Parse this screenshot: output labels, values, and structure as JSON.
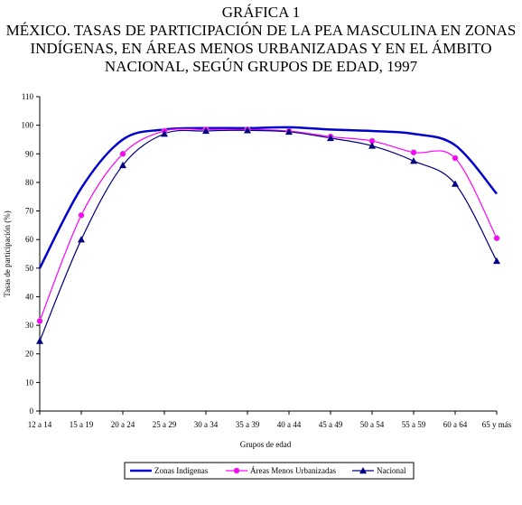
{
  "chart_data": {
    "type": "line",
    "title_lines": [
      "GRÁFICA 1",
      "MÉXICO. TASAS DE PARTICIPACIÓN DE LA PEA MASCULINA EN ZONAS",
      "INDÍGENAS, EN ÁREAS MENOS URBANIZADAS Y EN EL ÁMBITO",
      "NACIONAL, SEGÚN GRUPOS DE EDAD, 1997"
    ],
    "xlabel": "Grupos de edad",
    "ylabel": "Tasas de participación (%)",
    "ylim": [
      0,
      110
    ],
    "yticks": [
      0,
      10,
      20,
      30,
      40,
      50,
      60,
      70,
      80,
      90,
      100,
      110
    ],
    "grid": false,
    "legend_position": "bottom",
    "categories": [
      "12 a 14",
      "15 a 19",
      "20 a 24",
      "25 a 29",
      "30 a 34",
      "35 a 39",
      "40 a 44",
      "45 a 49",
      "50 a 54",
      "55 a 59",
      "60 a 64",
      "65 y más"
    ],
    "series": [
      {
        "name": "Zonas Indígenas",
        "color": "#0000cc",
        "marker": "none",
        "values": [
          50,
          78,
          95,
          98.5,
          99,
          99,
          99.3,
          98.5,
          98,
          97,
          93,
          76
        ]
      },
      {
        "name": "Áreas Menos Urbanizadas",
        "color": "#ff00ff",
        "marker": "circle",
        "values": [
          31.5,
          68.5,
          90,
          98,
          98.5,
          98.5,
          98,
          96,
          94.5,
          90.5,
          88.5,
          60.5
        ]
      },
      {
        "name": "Nacional",
        "color": "#000080",
        "marker": "triangle",
        "values": [
          24.5,
          60,
          86,
          97,
          98,
          98.2,
          97.7,
          95.5,
          92.8,
          87.5,
          79.5,
          52.5
        ]
      }
    ]
  }
}
